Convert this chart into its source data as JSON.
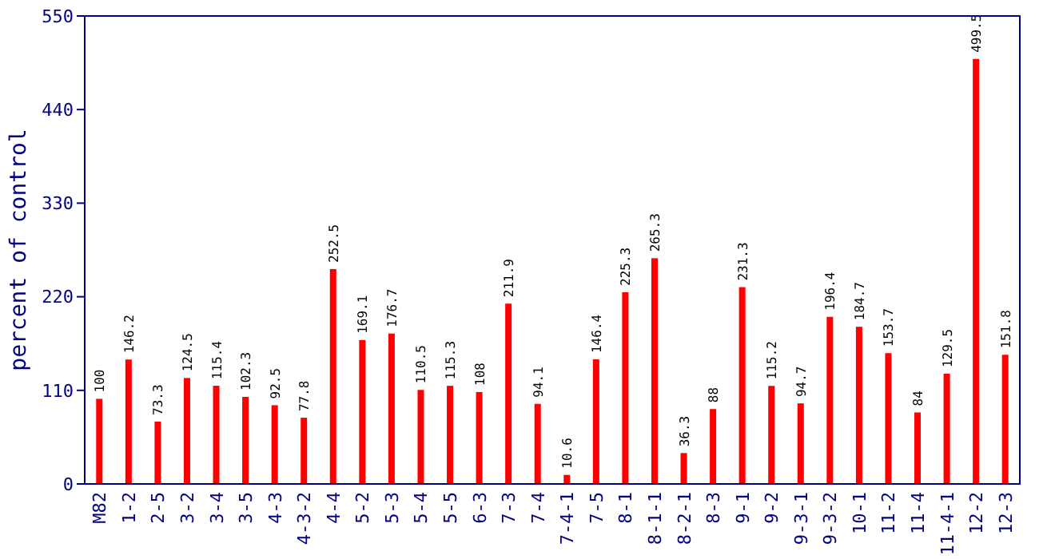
{
  "chart_data": {
    "type": "bar",
    "ylabel": "percent of control",
    "categories": [
      "M82",
      "1-2",
      "2-5",
      "3-2",
      "3-4",
      "3-5",
      "4-3",
      "4-3-2",
      "4-4",
      "5-2",
      "5-3",
      "5-4",
      "5-5",
      "6-3",
      "7-3",
      "7-4",
      "7-4-1",
      "7-5",
      "8-1",
      "8-1-1",
      "8-2-1",
      "8-3",
      "9-1",
      "9-2",
      "9-3-1",
      "9-3-2",
      "10-1",
      "11-2",
      "11-4",
      "11-4-1",
      "12-2",
      "12-3"
    ],
    "values": [
      100,
      146.2,
      73.3,
      124.5,
      115.4,
      102.3,
      92.5,
      77.8,
      252.5,
      169.1,
      176.7,
      110.5,
      115.3,
      108,
      211.9,
      94.1,
      10.6,
      146.4,
      225.3,
      265.3,
      36.3,
      88,
      231.3,
      115.2,
      94.7,
      196.4,
      184.7,
      153.7,
      84,
      129.5,
      499.5,
      151.8
    ],
    "color": "#ff0000",
    "ylim": [
      0,
      550
    ],
    "yticks": [
      0,
      110,
      220,
      330,
      440,
      550
    ],
    "data_labels": true
  }
}
